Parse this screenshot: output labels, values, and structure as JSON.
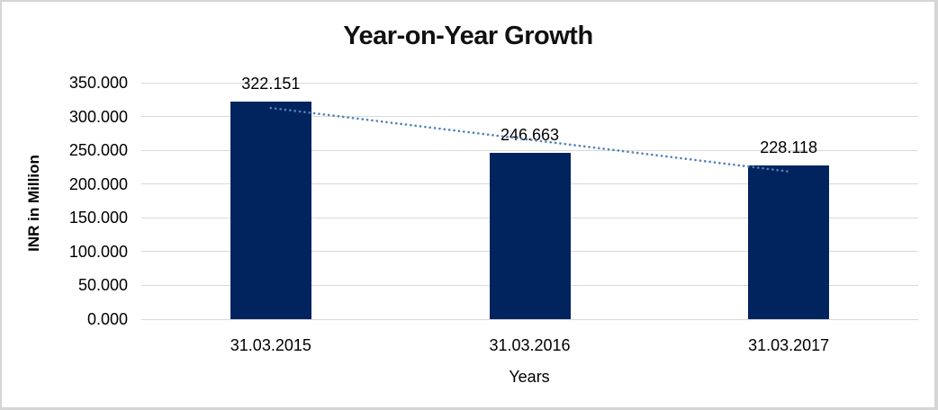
{
  "frame": {
    "background": "#ffffff",
    "border_color": "#d5d5d5"
  },
  "chart_data": {
    "type": "bar",
    "title": "Year-on-Year Growth",
    "xlabel": "Years",
    "ylabel": "INR in Million",
    "categories": [
      "31.03.2015",
      "31.03.2016",
      "31.03.2017"
    ],
    "values": [
      322.151,
      246.663,
      228.118
    ],
    "value_labels": [
      "322.151",
      "246.663",
      "228.118"
    ],
    "ylim": [
      0,
      350
    ],
    "ytick_step": 50,
    "ytick_labels": [
      "0.000",
      "50.000",
      "100.000",
      "150.000",
      "200.000",
      "250.000",
      "300.000",
      "350.000"
    ],
    "grid": true,
    "legend": "none",
    "bar_color": "#02245e",
    "gridline_color": "#d9d9d9",
    "trendline": {
      "type": "linear",
      "style": "dotted",
      "color": "#4f81bd"
    }
  }
}
